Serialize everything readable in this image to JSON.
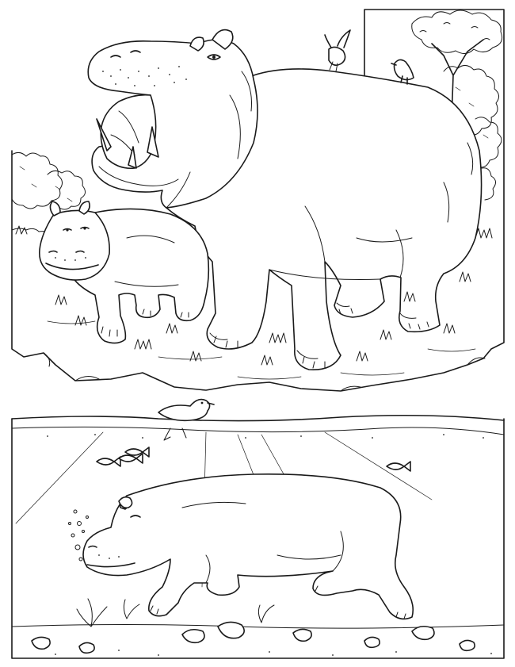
{
  "page": {
    "kind": "coloring-page",
    "ink_color": "#1a1a1a",
    "paper_color": "#ffffff"
  },
  "top_panel": {
    "scene": "savanna",
    "subjects": [
      "adult-hippo-open-mouth",
      "baby-hippo",
      "birds-on-back",
      "tree",
      "bushes",
      "grass-tufts"
    ]
  },
  "bottom_panel": {
    "scene": "underwater",
    "subjects": [
      "swimming-hippo",
      "duck-at-surface",
      "fish",
      "water-plants",
      "riverbed-rocks",
      "light-rays",
      "bubbles"
    ]
  }
}
